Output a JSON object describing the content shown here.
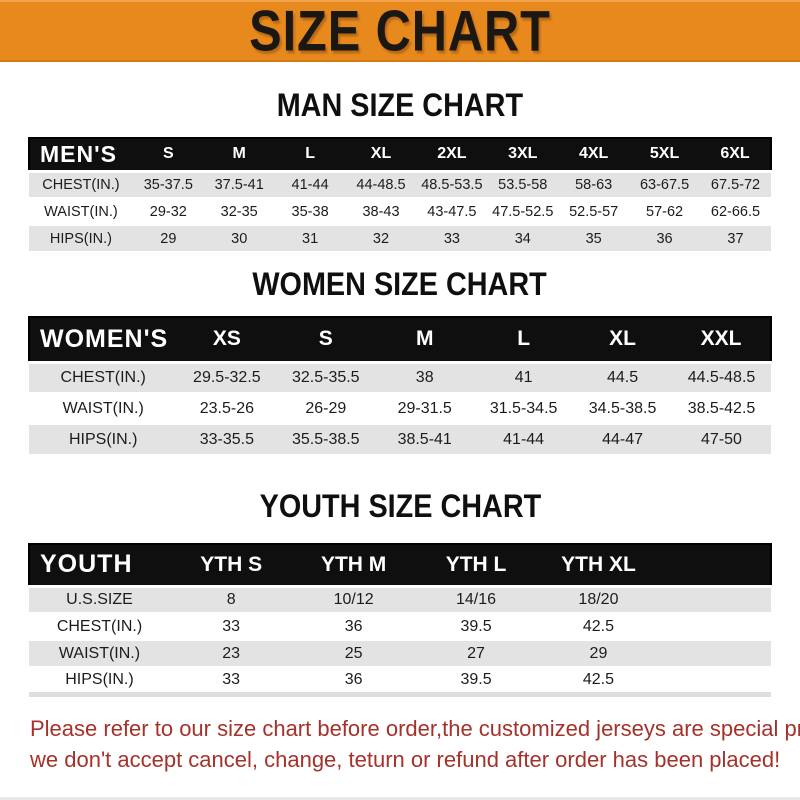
{
  "banner": {
    "title": "SIZE CHART",
    "background_color": "#e8891e",
    "text_color": "#1b1713"
  },
  "colors": {
    "header_bar": "#0f0f0f",
    "row_gray": "#e3e3e3",
    "row_white": "#ffffff",
    "notice_red": "#a5322a"
  },
  "sections": [
    {
      "id": "men",
      "heading": "MAN SIZE CHART",
      "header_label": "MEN'S",
      "columns": [
        "S",
        "M",
        "L",
        "XL",
        "2XL",
        "3XL",
        "4XL",
        "5XL",
        "6XL"
      ],
      "rows": [
        {
          "label": "CHEST(IN.)",
          "values": [
            "35-37.5",
            "37.5-41",
            "41-44",
            "44-48.5",
            "48.5-53.5",
            "53.5-58",
            "58-63",
            "63-67.5",
            "67.5-72"
          ]
        },
        {
          "label": "WAIST(IN.)",
          "values": [
            "29-32",
            "32-35",
            "35-38",
            "38-43",
            "43-47.5",
            "47.5-52.5",
            "52.5-57",
            "57-62",
            "62-66.5"
          ]
        },
        {
          "label": "HIPS(IN.)",
          "values": [
            "29",
            "30",
            "31",
            "32",
            "33",
            "34",
            "35",
            "36",
            "37"
          ]
        }
      ]
    },
    {
      "id": "women",
      "heading": "WOMEN SIZE CHART",
      "header_label": "WOMEN'S",
      "columns": [
        "XS",
        "S",
        "M",
        "L",
        "XL",
        "XXL"
      ],
      "rows": [
        {
          "label": "CHEST(IN.)",
          "values": [
            "29.5-32.5",
            "32.5-35.5",
            "38",
            "41",
            "44.5",
            "44.5-48.5"
          ]
        },
        {
          "label": "WAIST(IN.)",
          "values": [
            "23.5-26",
            "26-29",
            "29-31.5",
            "31.5-34.5",
            "34.5-38.5",
            "38.5-42.5"
          ]
        },
        {
          "label": "HIPS(IN.)",
          "values": [
            "33-35.5",
            "35.5-38.5",
            "38.5-41",
            "41-44",
            "44-47",
            "47-50"
          ]
        }
      ]
    },
    {
      "id": "youth",
      "heading": "YOUTH SIZE CHART",
      "header_label": "YOUTH",
      "columns": [
        "YTH S",
        "YTH M",
        "YTH L",
        "YTH XL"
      ],
      "rows": [
        {
          "label": "U.S.SIZE",
          "values": [
            "8",
            "10/12",
            "14/16",
            "18/20"
          ]
        },
        {
          "label": "CHEST(IN.)",
          "values": [
            "33",
            "36",
            "39.5",
            "42.5"
          ]
        },
        {
          "label": "WAIST(IN.)",
          "values": [
            "23",
            "25",
            "27",
            "29"
          ]
        },
        {
          "label": "HIPS(IN.)",
          "values": [
            "33",
            "36",
            "39.5",
            "42.5"
          ]
        }
      ]
    }
  ],
  "notice": {
    "line1": "Please refer to our size chart before order,the customized jerseys are special products,",
    "line2": "we don't accept cancel, change, teturn or refund after order has been placed!"
  }
}
